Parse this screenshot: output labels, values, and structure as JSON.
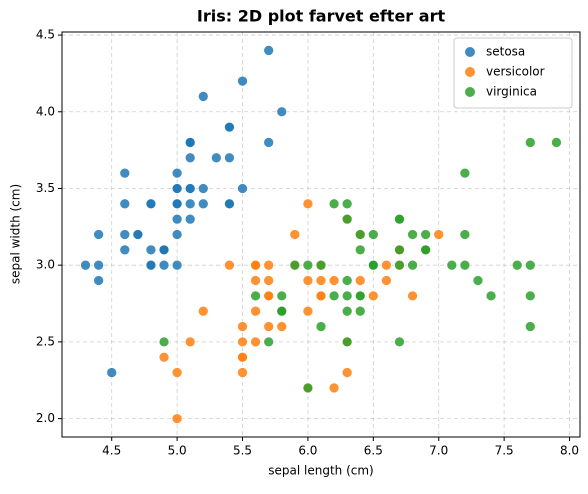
{
  "chart_data": {
    "type": "scatter",
    "title": "Iris: 2D plot farvet efter art",
    "x_label": "sepal length (cm)",
    "y_label": "sepal width (cm)",
    "xlim": [
      4.12,
      8.08
    ],
    "ylim": [
      1.88,
      4.52
    ],
    "xticks": [
      4.5,
      {
        "value": 5,
        "label": "5.0"
      },
      5.5,
      {
        "value": 6,
        "label": "6.0"
      },
      6.5,
      {
        "value": 7,
        "label": "7.0"
      },
      7.5,
      {
        "value": 8,
        "label": "8.0"
      }
    ],
    "yticks": [
      {
        "value": 2,
        "label": "2.0"
      },
      2.5,
      {
        "value": 3,
        "label": "3.0"
      },
      3.5,
      {
        "value": 4,
        "label": "4.0"
      },
      4.5
    ],
    "grid": true,
    "legend": "upper-right",
    "series": [
      {
        "name": "setosa",
        "color": "#1f77b4",
        "x": [
          5.1,
          4.9,
          4.7,
          4.6,
          5.0,
          5.4,
          4.6,
          5.0,
          4.4,
          4.9,
          5.4,
          4.8,
          4.8,
          4.3,
          5.8,
          5.7,
          5.4,
          5.1,
          5.7,
          5.1,
          5.4,
          5.1,
          4.6,
          5.1,
          4.8,
          5.0,
          5.0,
          5.2,
          5.2,
          4.7,
          4.8,
          5.4,
          5.2,
          5.5,
          4.9,
          5.0,
          5.5,
          4.9,
          4.4,
          5.1,
          5.0,
          4.5,
          4.4,
          5.0,
          5.1,
          4.8,
          5.1,
          4.6,
          5.3,
          5.0
        ],
        "values": [
          3.5,
          3.0,
          3.2,
          3.1,
          3.6,
          3.9,
          3.4,
          3.4,
          2.9,
          3.1,
          3.7,
          3.4,
          3.0,
          3.0,
          4.0,
          4.4,
          3.9,
          3.5,
          3.8,
          3.8,
          3.4,
          3.7,
          3.6,
          3.3,
          3.4,
          3.0,
          3.4,
          3.5,
          3.4,
          3.2,
          3.1,
          3.4,
          4.1,
          4.2,
          3.1,
          3.2,
          3.5,
          3.1,
          3.0,
          3.4,
          3.5,
          2.3,
          3.2,
          3.5,
          3.8,
          3.0,
          3.8,
          3.2,
          3.7,
          3.3
        ]
      },
      {
        "name": "versicolor",
        "color": "#ff7f0e",
        "x": [
          7.0,
          6.4,
          6.9,
          5.5,
          6.5,
          5.7,
          6.3,
          4.9,
          6.6,
          5.2,
          5.0,
          5.9,
          6.0,
          6.1,
          5.6,
          6.7,
          5.6,
          5.8,
          6.2,
          5.6,
          5.9,
          6.1,
          6.3,
          6.1,
          6.4,
          6.6,
          6.8,
          6.7,
          6.0,
          5.7,
          5.5,
          5.5,
          5.8,
          6.0,
          5.4,
          6.0,
          6.7,
          6.3,
          5.6,
          5.5,
          5.5,
          6.1,
          5.8,
          5.0,
          5.6,
          5.7,
          5.7,
          6.2,
          5.1,
          5.7
        ],
        "values": [
          3.2,
          3.2,
          3.1,
          2.3,
          2.8,
          2.8,
          3.3,
          2.4,
          2.9,
          2.7,
          2.0,
          3.0,
          2.2,
          2.9,
          2.9,
          3.1,
          3.0,
          2.7,
          2.2,
          2.5,
          3.2,
          2.8,
          2.5,
          2.8,
          2.9,
          3.0,
          2.8,
          3.0,
          2.9,
          2.6,
          2.4,
          2.4,
          2.7,
          2.7,
          3.0,
          3.4,
          3.1,
          2.3,
          3.0,
          2.5,
          2.6,
          3.0,
          2.6,
          2.3,
          2.7,
          3.0,
          2.9,
          2.9,
          2.5,
          2.8
        ]
      },
      {
        "name": "virginica",
        "color": "#2ca02c",
        "x": [
          6.3,
          5.8,
          7.1,
          6.3,
          6.5,
          7.6,
          4.9,
          7.3,
          6.7,
          7.2,
          6.5,
          6.4,
          6.8,
          5.7,
          5.8,
          6.4,
          6.5,
          7.7,
          7.7,
          6.0,
          6.9,
          5.6,
          7.7,
          6.3,
          6.7,
          7.2,
          6.2,
          6.1,
          6.4,
          7.2,
          7.4,
          7.9,
          6.4,
          6.3,
          6.1,
          7.7,
          6.3,
          6.4,
          6.0,
          6.9,
          6.7,
          6.9,
          5.8,
          6.8,
          6.7,
          6.7,
          6.3,
          6.5,
          6.2,
          5.9
        ],
        "values": [
          3.3,
          2.7,
          3.0,
          2.9,
          3.0,
          3.0,
          2.5,
          2.9,
          2.5,
          3.6,
          3.2,
          2.7,
          3.0,
          2.5,
          2.8,
          3.2,
          3.0,
          3.8,
          2.6,
          2.2,
          3.2,
          2.8,
          2.8,
          2.7,
          3.3,
          3.2,
          2.8,
          3.0,
          2.8,
          3.0,
          2.8,
          3.8,
          2.8,
          2.8,
          2.6,
          3.0,
          3.4,
          3.1,
          3.0,
          3.1,
          3.1,
          3.1,
          2.7,
          3.2,
          3.3,
          3.0,
          2.5,
          3.0,
          3.4,
          3.0
        ]
      }
    ]
  }
}
